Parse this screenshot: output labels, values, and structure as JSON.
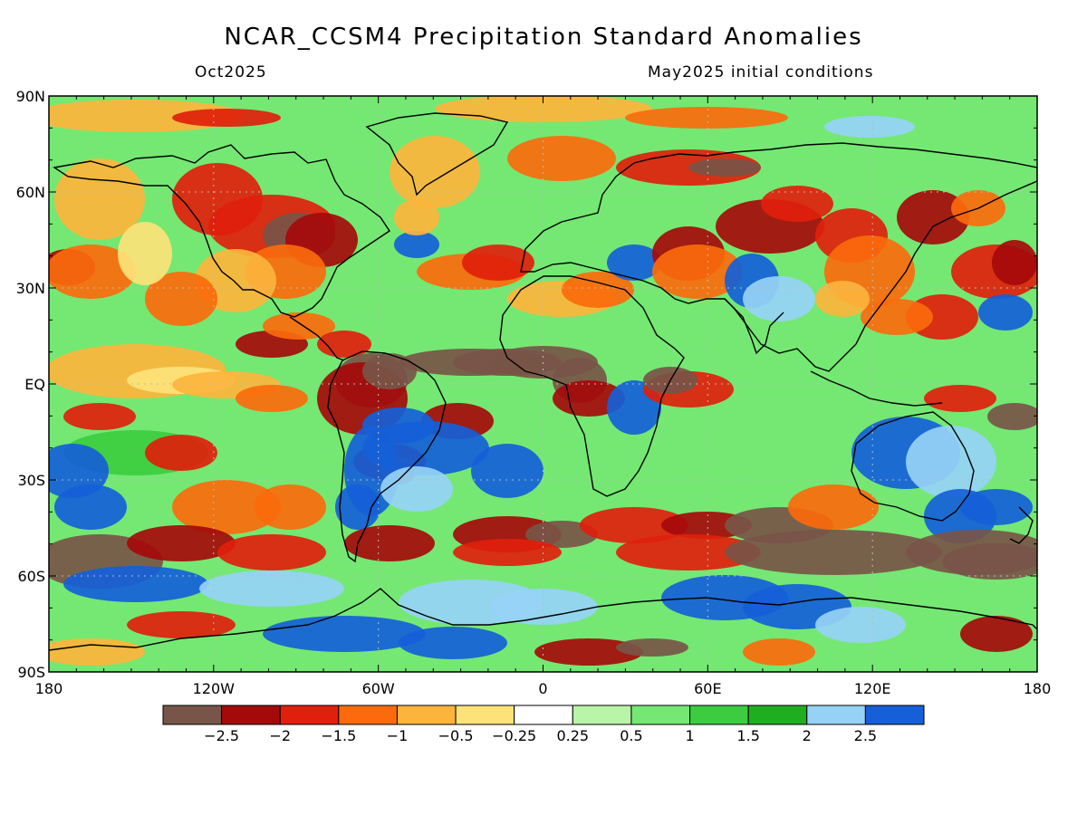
{
  "header": {
    "title": "NCAR_CCSM4 Precipitation Standard Anomalies",
    "valid_month": "Oct2025",
    "init_conditions": "May2025 initial conditions"
  },
  "axes": {
    "lat_labels": [
      "90N",
      "60N",
      "30N",
      "EQ",
      "30S",
      "60S",
      "90S"
    ],
    "lat_values": [
      90,
      60,
      30,
      0,
      -30,
      -60,
      -90
    ],
    "lon_labels": [
      "180",
      "120W",
      "60W",
      "0",
      "60E",
      "120E",
      "180"
    ],
    "lon_values": [
      -180,
      -120,
      -60,
      0,
      60,
      120,
      180
    ]
  },
  "colorbar": {
    "colors": [
      "#785548",
      "#a50a0a",
      "#e0200c",
      "#fb6a0c",
      "#fdb43c",
      "#fde27a",
      "#ffffff",
      "#b8f5a8",
      "#74e873",
      "#3dcc40",
      "#1fae1f",
      "#96d2f6",
      "#1560d8"
    ],
    "labels": [
      "-2.5",
      "-2",
      "-1.5",
      "-1",
      "-0.5",
      "-0.25",
      "0.25",
      "0.5",
      "1",
      "1.5",
      "2",
      "2.5"
    ],
    "bounds": [
      -2.5,
      -2,
      -1.5,
      -1,
      -0.5,
      -0.25,
      0.25,
      0.5,
      1,
      1.5,
      2,
      2.5
    ]
  },
  "map": {
    "projection": "equirectangular",
    "lon_range": [
      -180,
      180
    ],
    "lat_range": [
      -90,
      90
    ],
    "gridlines": "dotted at 30 degree intervals"
  }
}
